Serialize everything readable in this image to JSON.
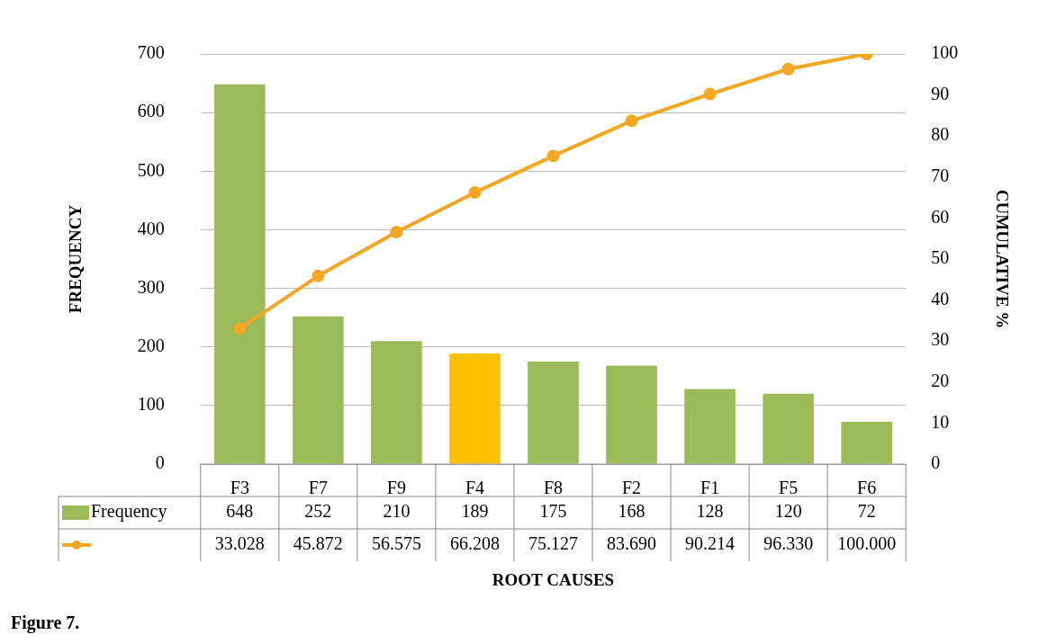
{
  "chart_data": {
    "type": "bar",
    "xlabel": "ROOT CAUSES",
    "ylabel": "FREQUENCY",
    "y2label": "CUMULATIVE %",
    "categories": [
      "F3",
      "F7",
      "F9",
      "F4",
      "F8",
      "F2",
      "F1",
      "F5",
      "F6"
    ],
    "series": [
      {
        "name": "Frequency",
        "colors": [
          "#9bbb59",
          "#9bbb59",
          "#9bbb59",
          "#ffc000",
          "#9bbb59",
          "#9bbb59",
          "#9bbb59",
          "#9bbb59",
          "#9bbb59"
        ],
        "values": [
          648,
          252,
          210,
          189,
          175,
          168,
          128,
          120,
          72
        ],
        "value_labels": [
          "648",
          "252",
          "210",
          "189",
          "175",
          "168",
          "128",
          "120",
          "72"
        ]
      },
      {
        "type": "line",
        "axis": "y2",
        "color": "#f5a623",
        "marker": "circle",
        "values": [
          33.028,
          45.872,
          56.575,
          66.208,
          75.127,
          83.69,
          90.214,
          96.33,
          100
        ],
        "value_labels": [
          "33.028",
          "45.872",
          "56.575",
          "66.208",
          "75.127",
          "83.690",
          "90.214",
          "96.330",
          "100.000"
        ]
      }
    ],
    "ylim": [
      0,
      700
    ],
    "yticks": [
      0,
      100,
      200,
      300,
      400,
      500,
      600,
      700
    ],
    "y2lim": [
      0,
      100
    ],
    "y2ticks": [
      0,
      10,
      20,
      30,
      40,
      50,
      60,
      70,
      80,
      90,
      100
    ],
    "grid": "y",
    "legend": "bottom left",
    "annotations": [
      "Figure 7."
    ]
  }
}
